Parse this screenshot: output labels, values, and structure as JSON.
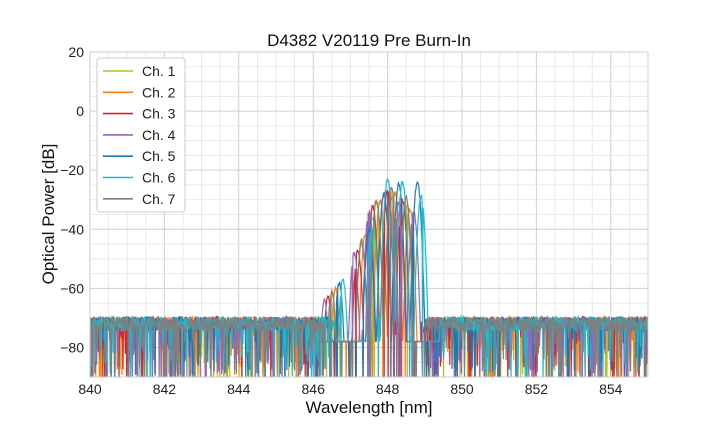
{
  "chart_data": {
    "type": "line",
    "title": "D4382 V20119 Pre Burn-In",
    "xlabel": "Wavelength [nm]",
    "ylabel": "Optical Power [dB]",
    "xlim": [
      840,
      855
    ],
    "ylim": [
      -90,
      20
    ],
    "xticks": [
      840,
      842,
      844,
      846,
      848,
      850,
      852,
      854
    ],
    "yticks": [
      -80,
      -60,
      -40,
      -20,
      0,
      20
    ],
    "x_minor_step": 0.5,
    "y_minor_step": 5,
    "grid": true,
    "legend_position": "top-left",
    "noise_floor_db": -72,
    "series": [
      {
        "name": "Ch. 1",
        "color": "#bcbd22",
        "peaks": [
          {
            "x": 846.5,
            "y": -62
          },
          {
            "x": 847.3,
            "y": -45
          },
          {
            "x": 847.7,
            "y": -31
          },
          {
            "x": 848.1,
            "y": -29
          },
          {
            "x": 848.5,
            "y": -32
          }
        ],
        "edge_low": 846.2,
        "edge_high": 849.0
      },
      {
        "name": "Ch. 2",
        "color": "#ff7f0e",
        "peaks": [
          {
            "x": 846.6,
            "y": -60
          },
          {
            "x": 847.4,
            "y": -42
          },
          {
            "x": 847.8,
            "y": -30
          },
          {
            "x": 848.2,
            "y": -28
          },
          {
            "x": 848.6,
            "y": -33
          }
        ],
        "edge_low": 846.4,
        "edge_high": 849.1
      },
      {
        "name": "Ch. 3",
        "color": "#d62728",
        "peaks": [
          {
            "x": 846.4,
            "y": -63
          },
          {
            "x": 847.2,
            "y": -47
          },
          {
            "x": 847.6,
            "y": -32
          },
          {
            "x": 848.0,
            "y": -27
          },
          {
            "x": 848.4,
            "y": -30
          }
        ],
        "edge_low": 846.1,
        "edge_high": 848.9
      },
      {
        "name": "Ch. 4",
        "color": "#9467bd",
        "peaks": [
          {
            "x": 846.3,
            "y": -64
          },
          {
            "x": 847.1,
            "y": -48
          },
          {
            "x": 847.5,
            "y": -34
          },
          {
            "x": 847.9,
            "y": -28
          },
          {
            "x": 848.3,
            "y": -31
          },
          {
            "x": 848.7,
            "y": -34
          }
        ],
        "edge_low": 846.0,
        "edge_high": 849.1
      },
      {
        "name": "Ch. 5",
        "color": "#1f77b4",
        "peaks": [
          {
            "x": 846.7,
            "y": -58
          },
          {
            "x": 847.5,
            "y": -40
          },
          {
            "x": 847.9,
            "y": -28
          },
          {
            "x": 848.3,
            "y": -25
          },
          {
            "x": 848.8,
            "y": -24
          }
        ],
        "edge_low": 846.5,
        "edge_high": 849.2
      },
      {
        "name": "Ch. 6",
        "color": "#17becf",
        "peaks": [
          {
            "x": 846.8,
            "y": -57
          },
          {
            "x": 847.6,
            "y": -36
          },
          {
            "x": 848.0,
            "y": -23
          },
          {
            "x": 848.4,
            "y": -24
          },
          {
            "x": 848.9,
            "y": -29
          }
        ],
        "edge_low": 846.6,
        "edge_high": 849.4
      },
      {
        "name": "Ch. 7",
        "color": "#7f7f7f",
        "peaks": [
          {
            "x": 846.5,
            "y": -61
          },
          {
            "x": 847.3,
            "y": -44
          },
          {
            "x": 847.7,
            "y": -30
          },
          {
            "x": 848.1,
            "y": -26
          },
          {
            "x": 848.5,
            "y": -29
          }
        ],
        "edge_low": 846.3,
        "edge_high": 849.0
      }
    ]
  }
}
